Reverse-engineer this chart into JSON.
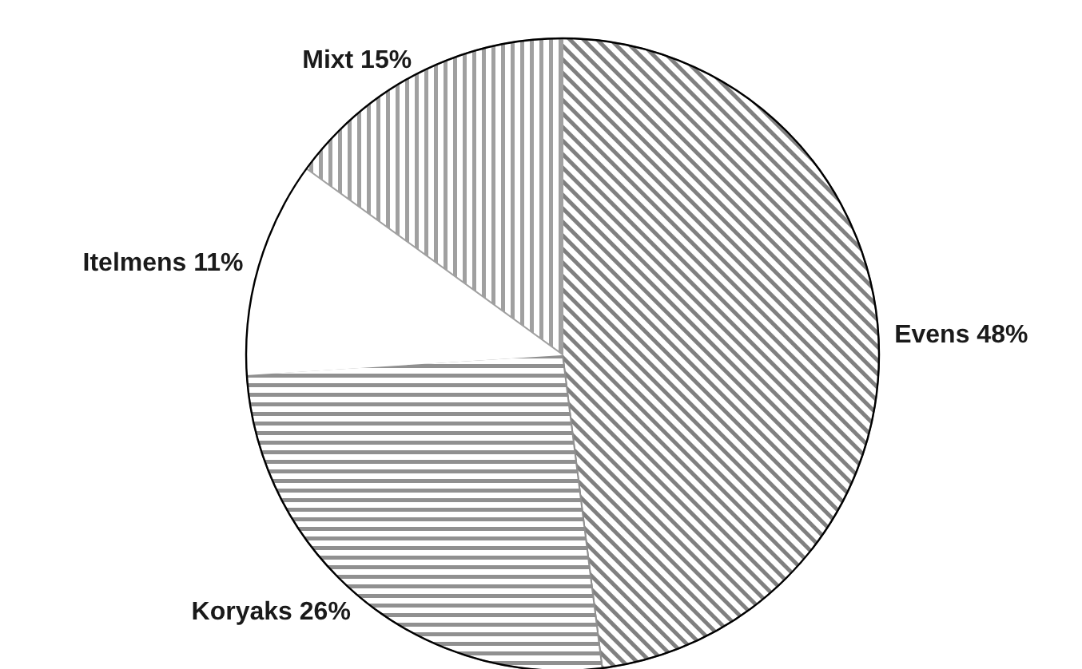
{
  "chart_data": {
    "type": "pie",
    "categories": [
      "Evens",
      "Koryaks",
      "Itelmens",
      "Mixt"
    ],
    "values": [
      48,
      26,
      11,
      15
    ],
    "colors": [
      "#808080",
      "#909090",
      "#ffffff",
      "#a0a0a0"
    ],
    "value_labels": [
      "48%",
      "26%",
      "11%",
      "15%"
    ]
  }
}
